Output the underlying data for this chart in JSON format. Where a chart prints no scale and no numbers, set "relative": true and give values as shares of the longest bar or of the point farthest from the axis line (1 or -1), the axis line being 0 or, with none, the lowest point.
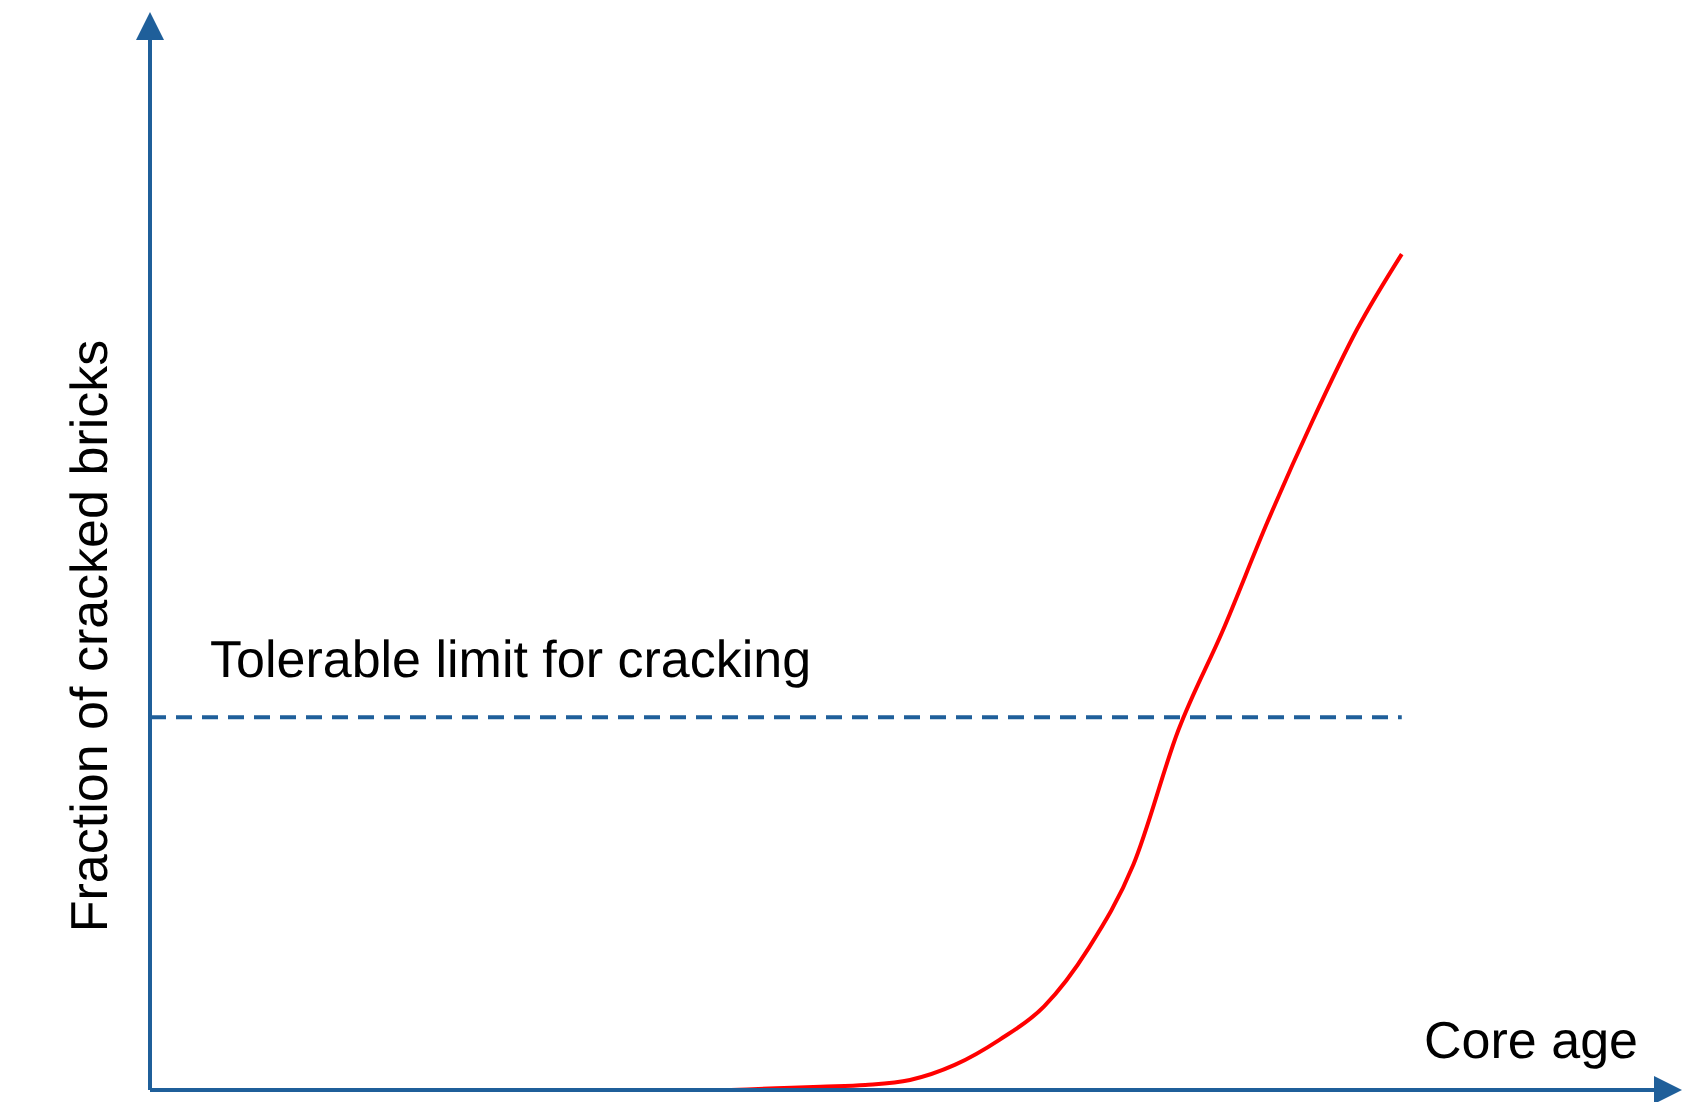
{
  "chart_data": {
    "type": "line",
    "relative": true,
    "xlabel": "Core age",
    "ylabel": "Fraction of cracked bricks",
    "marker": "none",
    "line_style": "solid",
    "categories": [
      null,
      null,
      null,
      null,
      null,
      null,
      null,
      null,
      null,
      null,
      null,
      null,
      null,
      null,
      null,
      null,
      null,
      null,
      null,
      null,
      null,
      null,
      null,
      null,
      null,
      null,
      null,
      null,
      null,
      null,
      null,
      null,
      null,
      null,
      null
    ],
    "series": [
      {
        "color": "#ff0000",
        "values": [
          null,
          null,
          null,
          null,
          null,
          null,
          null,
          null,
          null,
          null,
          null,
          null,
          null,
          0,
          0.002,
          0.004,
          0.006,
          0.012,
          0.03,
          0.06,
          0.1,
          0.17,
          0.27,
          0.43,
          0.55,
          0.68,
          0.8,
          0.91,
          1,
          null,
          null,
          null,
          null,
          null,
          null
        ]
      }
    ],
    "ref_lines": [
      {
        "axis": "y",
        "value": 0.446,
        "label": "Tolerable limit for cracking",
        "color": "#1f5f9a",
        "line_style": "dashed"
      }
    ]
  }
}
